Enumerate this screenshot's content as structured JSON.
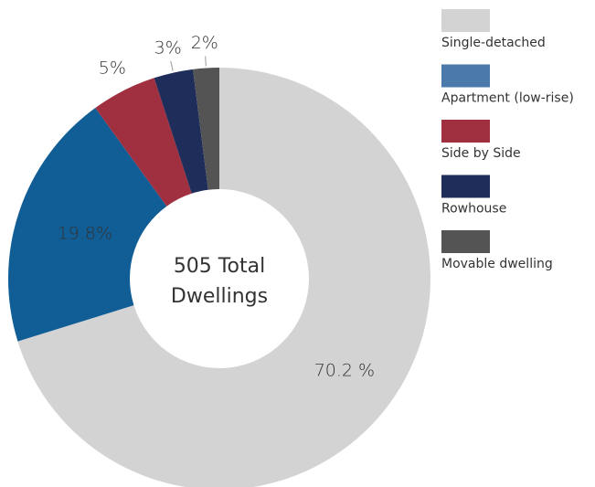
{
  "chart_data": {
    "type": "donut",
    "categories": [
      "Single-detached",
      "Apartment (low-rise)",
      "Side by Side",
      "Rowhouse",
      "Movable dwelling"
    ],
    "values": [
      70.2,
      19.8,
      5,
      3,
      2
    ],
    "value_labels": [
      "70.2 %",
      "19.8%",
      "5%",
      "3%",
      "2%"
    ],
    "colors": [
      "#d3d3d3",
      "#115e96",
      "#a0303f",
      "#1f2d5a",
      "#545454"
    ],
    "legend_colors": [
      "#d3d3d3",
      "#4b79ab",
      "#a0303f",
      "#1f2d5a",
      "#545454"
    ],
    "center_text": [
      "505 Total",
      "Dwellings"
    ],
    "legend": "right"
  }
}
